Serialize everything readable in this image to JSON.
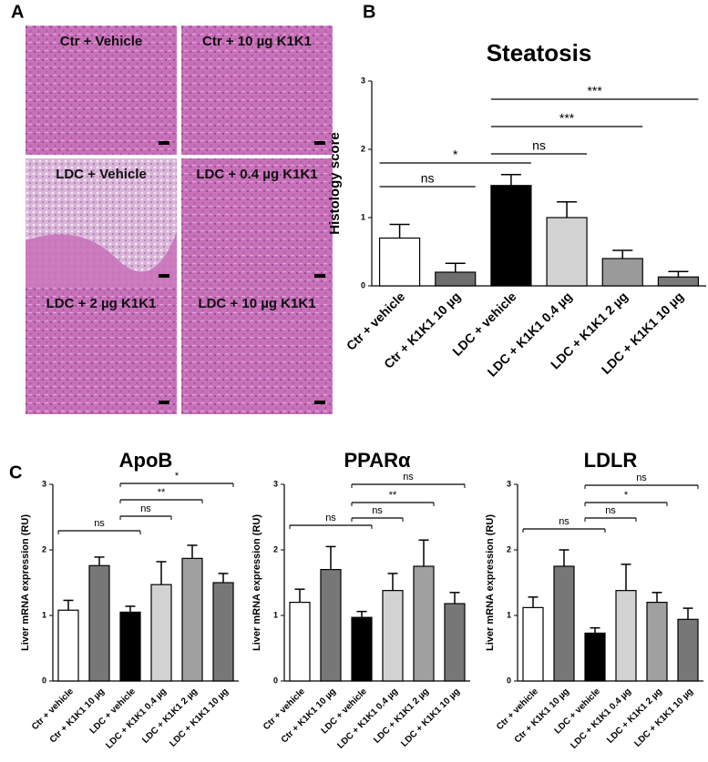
{
  "panels": {
    "a": "A",
    "b": "B",
    "c": "C"
  },
  "images": [
    "Ctr + Vehicle",
    "Ctr + 10 µg K1K1",
    "LDC + Vehicle",
    "LDC + 0.4 µg K1K1",
    "LDC + 2 µg K1K1",
    "LDC + 10 µg K1K1"
  ],
  "chart_data": [
    {
      "type": "bar",
      "title": "Steatosis",
      "y_label": "Histology score",
      "categories": [
        "Ctr + vehicle",
        "Ctr + K1K1 10 µg",
        "LDC + vehicle",
        "LDC + K1K1 0.4 µg",
        "LDC + K1K1 2 µg",
        "LDC + K1K1 10 µg"
      ],
      "values": [
        0.7,
        0.2,
        1.47,
        1.0,
        0.4,
        0.13
      ],
      "errors": [
        0.2,
        0.13,
        0.16,
        0.23,
        0.12,
        0.08
      ],
      "colors": [
        "#ffffff",
        "#6e6e6e",
        "#000000",
        "#d2d2d2",
        "#9a9a9a",
        "#7a7a7a"
      ],
      "ylim": [
        0,
        3
      ],
      "yticks": [
        0,
        1,
        2,
        3
      ],
      "brackets": [
        {
          "from": 0,
          "to": 1,
          "label": "ns"
        },
        {
          "from": 0,
          "to": 2,
          "label": "*"
        },
        {
          "from": 2,
          "to": 3,
          "label": "ns"
        },
        {
          "from": 2,
          "to": 4,
          "label": "***"
        },
        {
          "from": 2,
          "to": 5,
          "label": "***"
        }
      ]
    },
    {
      "type": "bar",
      "title": "ApoB",
      "y_label": "Liver mRNA expression (RU)",
      "categories": [
        "Ctr + vehicle",
        "Ctr + K1K1 10 µg",
        "LDC + vehicle",
        "LDC + K1K1 0.4 µg",
        "LDC + K1K1 2 µg",
        "LDC + K1K1 10 µg"
      ],
      "values": [
        1.08,
        1.76,
        1.05,
        1.47,
        1.87,
        1.5
      ],
      "errors": [
        0.15,
        0.13,
        0.09,
        0.35,
        0.2,
        0.14
      ],
      "colors": [
        "#ffffff",
        "#777777",
        "#000000",
        "#d2d2d2",
        "#a0a0a0",
        "#777777"
      ],
      "ylim": [
        0,
        3
      ],
      "yticks": [
        0,
        1,
        2,
        3
      ],
      "brackets": [
        {
          "from": 0,
          "to": 2,
          "label": "ns"
        },
        {
          "from": 2,
          "to": 3,
          "label": "ns"
        },
        {
          "from": 2,
          "to": 4,
          "label": "**"
        },
        {
          "from": 2,
          "to": 5,
          "label": "*"
        }
      ]
    },
    {
      "type": "bar",
      "title": "PPARα",
      "y_label": "Liver mRNA expression (RU)",
      "categories": [
        "Ctr + vehicle",
        "Ctr + K1K1 10 µg",
        "LDC + vehicle",
        "LDC + K1K1 0.4 µg",
        "LDC + K1K1 2 µg",
        "LDC + K1K1 10 µg"
      ],
      "values": [
        1.2,
        1.7,
        0.97,
        1.38,
        1.75,
        1.18
      ],
      "errors": [
        0.2,
        0.35,
        0.09,
        0.26,
        0.4,
        0.17
      ],
      "colors": [
        "#ffffff",
        "#777777",
        "#000000",
        "#d2d2d2",
        "#a0a0a0",
        "#777777"
      ],
      "ylim": [
        0,
        3
      ],
      "yticks": [
        0,
        1,
        2,
        3
      ],
      "brackets": [
        {
          "from": 0,
          "to": 2,
          "label": "ns"
        },
        {
          "from": 2,
          "to": 3,
          "label": "ns"
        },
        {
          "from": 2,
          "to": 4,
          "label": "**"
        },
        {
          "from": 2,
          "to": 5,
          "label": "ns"
        }
      ]
    },
    {
      "type": "bar",
      "title": "LDLR",
      "y_label": "Liver mRNA expression (RU)",
      "categories": [
        "Ctr + vehicle",
        "Ctr + K1K1 10 µg",
        "LDC + vehicle",
        "LDC + K1K1 0.4 µg",
        "LDC + K1K1 2 µg",
        "LDC + K1K1 10 µg"
      ],
      "values": [
        1.12,
        1.75,
        0.73,
        1.38,
        1.2,
        0.94
      ],
      "errors": [
        0.16,
        0.25,
        0.08,
        0.4,
        0.15,
        0.17
      ],
      "colors": [
        "#ffffff",
        "#777777",
        "#000000",
        "#d2d2d2",
        "#a0a0a0",
        "#777777"
      ],
      "ylim": [
        0,
        3
      ],
      "yticks": [
        0,
        1,
        2,
        3
      ],
      "brackets": [
        {
          "from": 0,
          "to": 2,
          "label": "ns"
        },
        {
          "from": 2,
          "to": 3,
          "label": "ns"
        },
        {
          "from": 2,
          "to": 4,
          "label": "*"
        },
        {
          "from": 2,
          "to": 5,
          "label": "ns"
        }
      ]
    }
  ]
}
